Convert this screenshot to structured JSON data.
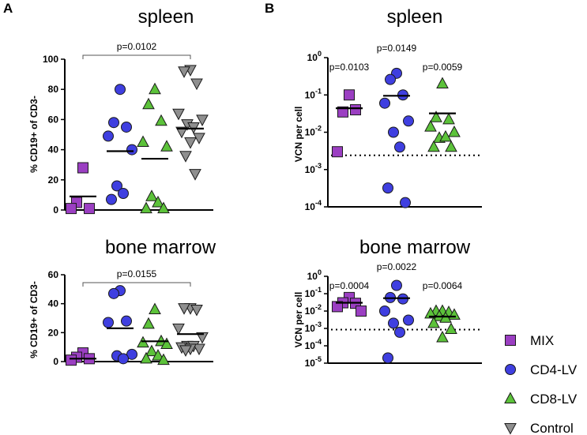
{
  "chart_data": {
    "type": "scatter",
    "legend": {
      "placement": "bottom-right",
      "entries": [
        {
          "name": "MIX",
          "marker": "square",
          "color": "#9b3fc2"
        },
        {
          "name": "CD4-LV",
          "marker": "circle",
          "color": "#3f3fe0"
        },
        {
          "name": "CD8-LV",
          "marker": "triangle-up",
          "color": "#5cc23a"
        },
        {
          "name": "Control",
          "marker": "triangle-down",
          "color": "#8f8f8f"
        }
      ]
    },
    "panels": [
      {
        "id": "A-spleen",
        "letter": "A",
        "title": "spleen",
        "ylabel": "% CD19+ of CD3-",
        "yscale": "linear",
        "ylim": [
          0,
          100
        ],
        "yticks": [
          0,
          20,
          40,
          60,
          80,
          100
        ],
        "tick_labels": [
          "0",
          "20",
          "40",
          "60",
          "80",
          "100"
        ],
        "groups": [
          {
            "name": "MIX",
            "values": [
              28,
              5,
              1,
              1
            ],
            "median": 9
          },
          {
            "name": "CD4-LV",
            "values": [
              80,
              58,
              55,
              49,
              40,
              16,
              11,
              7
            ],
            "median": 39
          },
          {
            "name": "CD8-LV",
            "values": [
              80,
              70,
              59,
              45,
              42,
              9,
              5,
              1,
              1
            ],
            "median": 34
          },
          {
            "name": "Control",
            "values": [
              93,
              92,
              84,
              64,
              60,
              57,
              55,
              52,
              48,
              45,
              36,
              24
            ],
            "median": 54
          }
        ],
        "comparisons": [
          {
            "label": "p=0.0102",
            "from": "MIX",
            "to": "Control"
          }
        ]
      },
      {
        "id": "A-bone-marrow",
        "letter": "",
        "title": "bone marrow",
        "ylabel": "% CD19+ of CD3-",
        "yscale": "linear",
        "ylim": [
          0,
          60
        ],
        "yticks": [
          0,
          20,
          40,
          60
        ],
        "tick_labels": [
          "0",
          "20",
          "40",
          "60"
        ],
        "groups": [
          {
            "name": "MIX",
            "values": [
              6,
              3,
              2,
              1
            ],
            "median": 2
          },
          {
            "name": "CD4-LV",
            "values": [
              49,
              47,
              28,
              27,
              5,
              4,
              2
            ],
            "median": 23
          },
          {
            "name": "CD8-LV",
            "values": [
              36,
              26,
              14,
              13,
              12,
              7,
              4,
              2,
              1
            ],
            "median": 14
          },
          {
            "name": "Control",
            "values": [
              37,
              37,
              36,
              23,
              17,
              11,
              11,
              10,
              9,
              9,
              8
            ],
            "median": 19
          }
        ],
        "comparisons": [
          {
            "label": "p=0.0155",
            "from": "MIX",
            "to": "Control"
          }
        ]
      },
      {
        "id": "B-spleen",
        "letter": "B",
        "title": "spleen",
        "ylabel": "VCN per cell",
        "yscale": "log",
        "ylim": [
          0.0001,
          1
        ],
        "yticks": [
          0.0001,
          0.001,
          0.01,
          0.1,
          1
        ],
        "tick_labels": [
          "10-4",
          "10-3",
          "10-2",
          "10-1",
          "100"
        ],
        "threshold": 0.0024,
        "groups": [
          {
            "name": "MIX",
            "values": [
              0.1,
              0.035,
              0.04,
              0.003
            ],
            "median": 0.044
          },
          {
            "name": "CD4-LV",
            "values": [
              0.38,
              0.26,
              0.1,
              0.06,
              0.02,
              0.01,
              0.004,
              0.00032,
              0.00013
            ],
            "median": 0.095
          },
          {
            "name": "CD8-LV",
            "values": [
              0.2,
              0.025,
              0.022,
              0.014,
              0.01,
              0.007,
              0.0075,
              0.004,
              0.004
            ],
            "median": 0.032
          }
        ],
        "group_labels": [
          {
            "group": "MIX",
            "label": "p=0.0103"
          },
          {
            "group": "CD4-LV",
            "label": "p=0.0149"
          },
          {
            "group": "CD8-LV",
            "label": "p=0.0059"
          }
        ]
      },
      {
        "id": "B-bone-marrow",
        "letter": "",
        "title": "bone marrow",
        "ylabel": "VCN per cell",
        "yscale": "log",
        "ylim": [
          1e-05,
          1
        ],
        "yticks": [
          1e-05,
          0.0001,
          0.001,
          0.01,
          0.1,
          1
        ],
        "tick_labels": [
          "10-5",
          "10-4",
          "10-3",
          "10-2",
          "10-1",
          "100"
        ],
        "threshold": 0.00085,
        "groups": [
          {
            "name": "MIX",
            "values": [
              0.06,
              0.03,
              0.028,
              0.018,
              0.01
            ],
            "median": 0.03
          },
          {
            "name": "CD4-LV",
            "values": [
              0.3,
              0.06,
              0.05,
              0.01,
              0.003,
              0.002,
              0.0006,
              2e-05
            ],
            "median": 0.055
          },
          {
            "name": "CD8-LV",
            "values": [
              0.01,
              0.01,
              0.0085,
              0.007,
              0.006,
              0.005,
              0.004,
              0.002,
              0.0009,
              0.0003
            ],
            "median": 0.0048
          }
        ],
        "group_labels": [
          {
            "group": "MIX",
            "label": "p=0.0004"
          },
          {
            "group": "CD4-LV",
            "label": "p=0.0022"
          },
          {
            "group": "CD8-LV",
            "label": "p=0.0064"
          }
        ]
      }
    ]
  }
}
